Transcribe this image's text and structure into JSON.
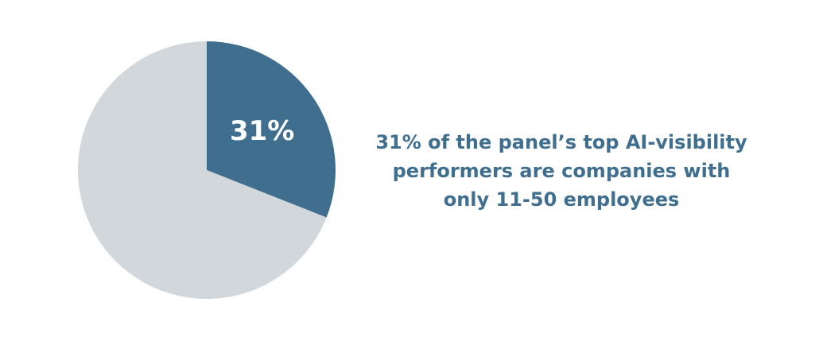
{
  "chart_data": {
    "type": "pie",
    "values": [
      31,
      69
    ],
    "value_labels": [
      "31%",
      null
    ],
    "colors": [
      "#3f6e8f",
      "#d2d7dc"
    ],
    "annotation": [
      "31% of the panel’s top AI-visibility",
      "performers are companies with",
      "only 11-50 employees"
    ],
    "annotation_color": "#3f6e8f"
  }
}
